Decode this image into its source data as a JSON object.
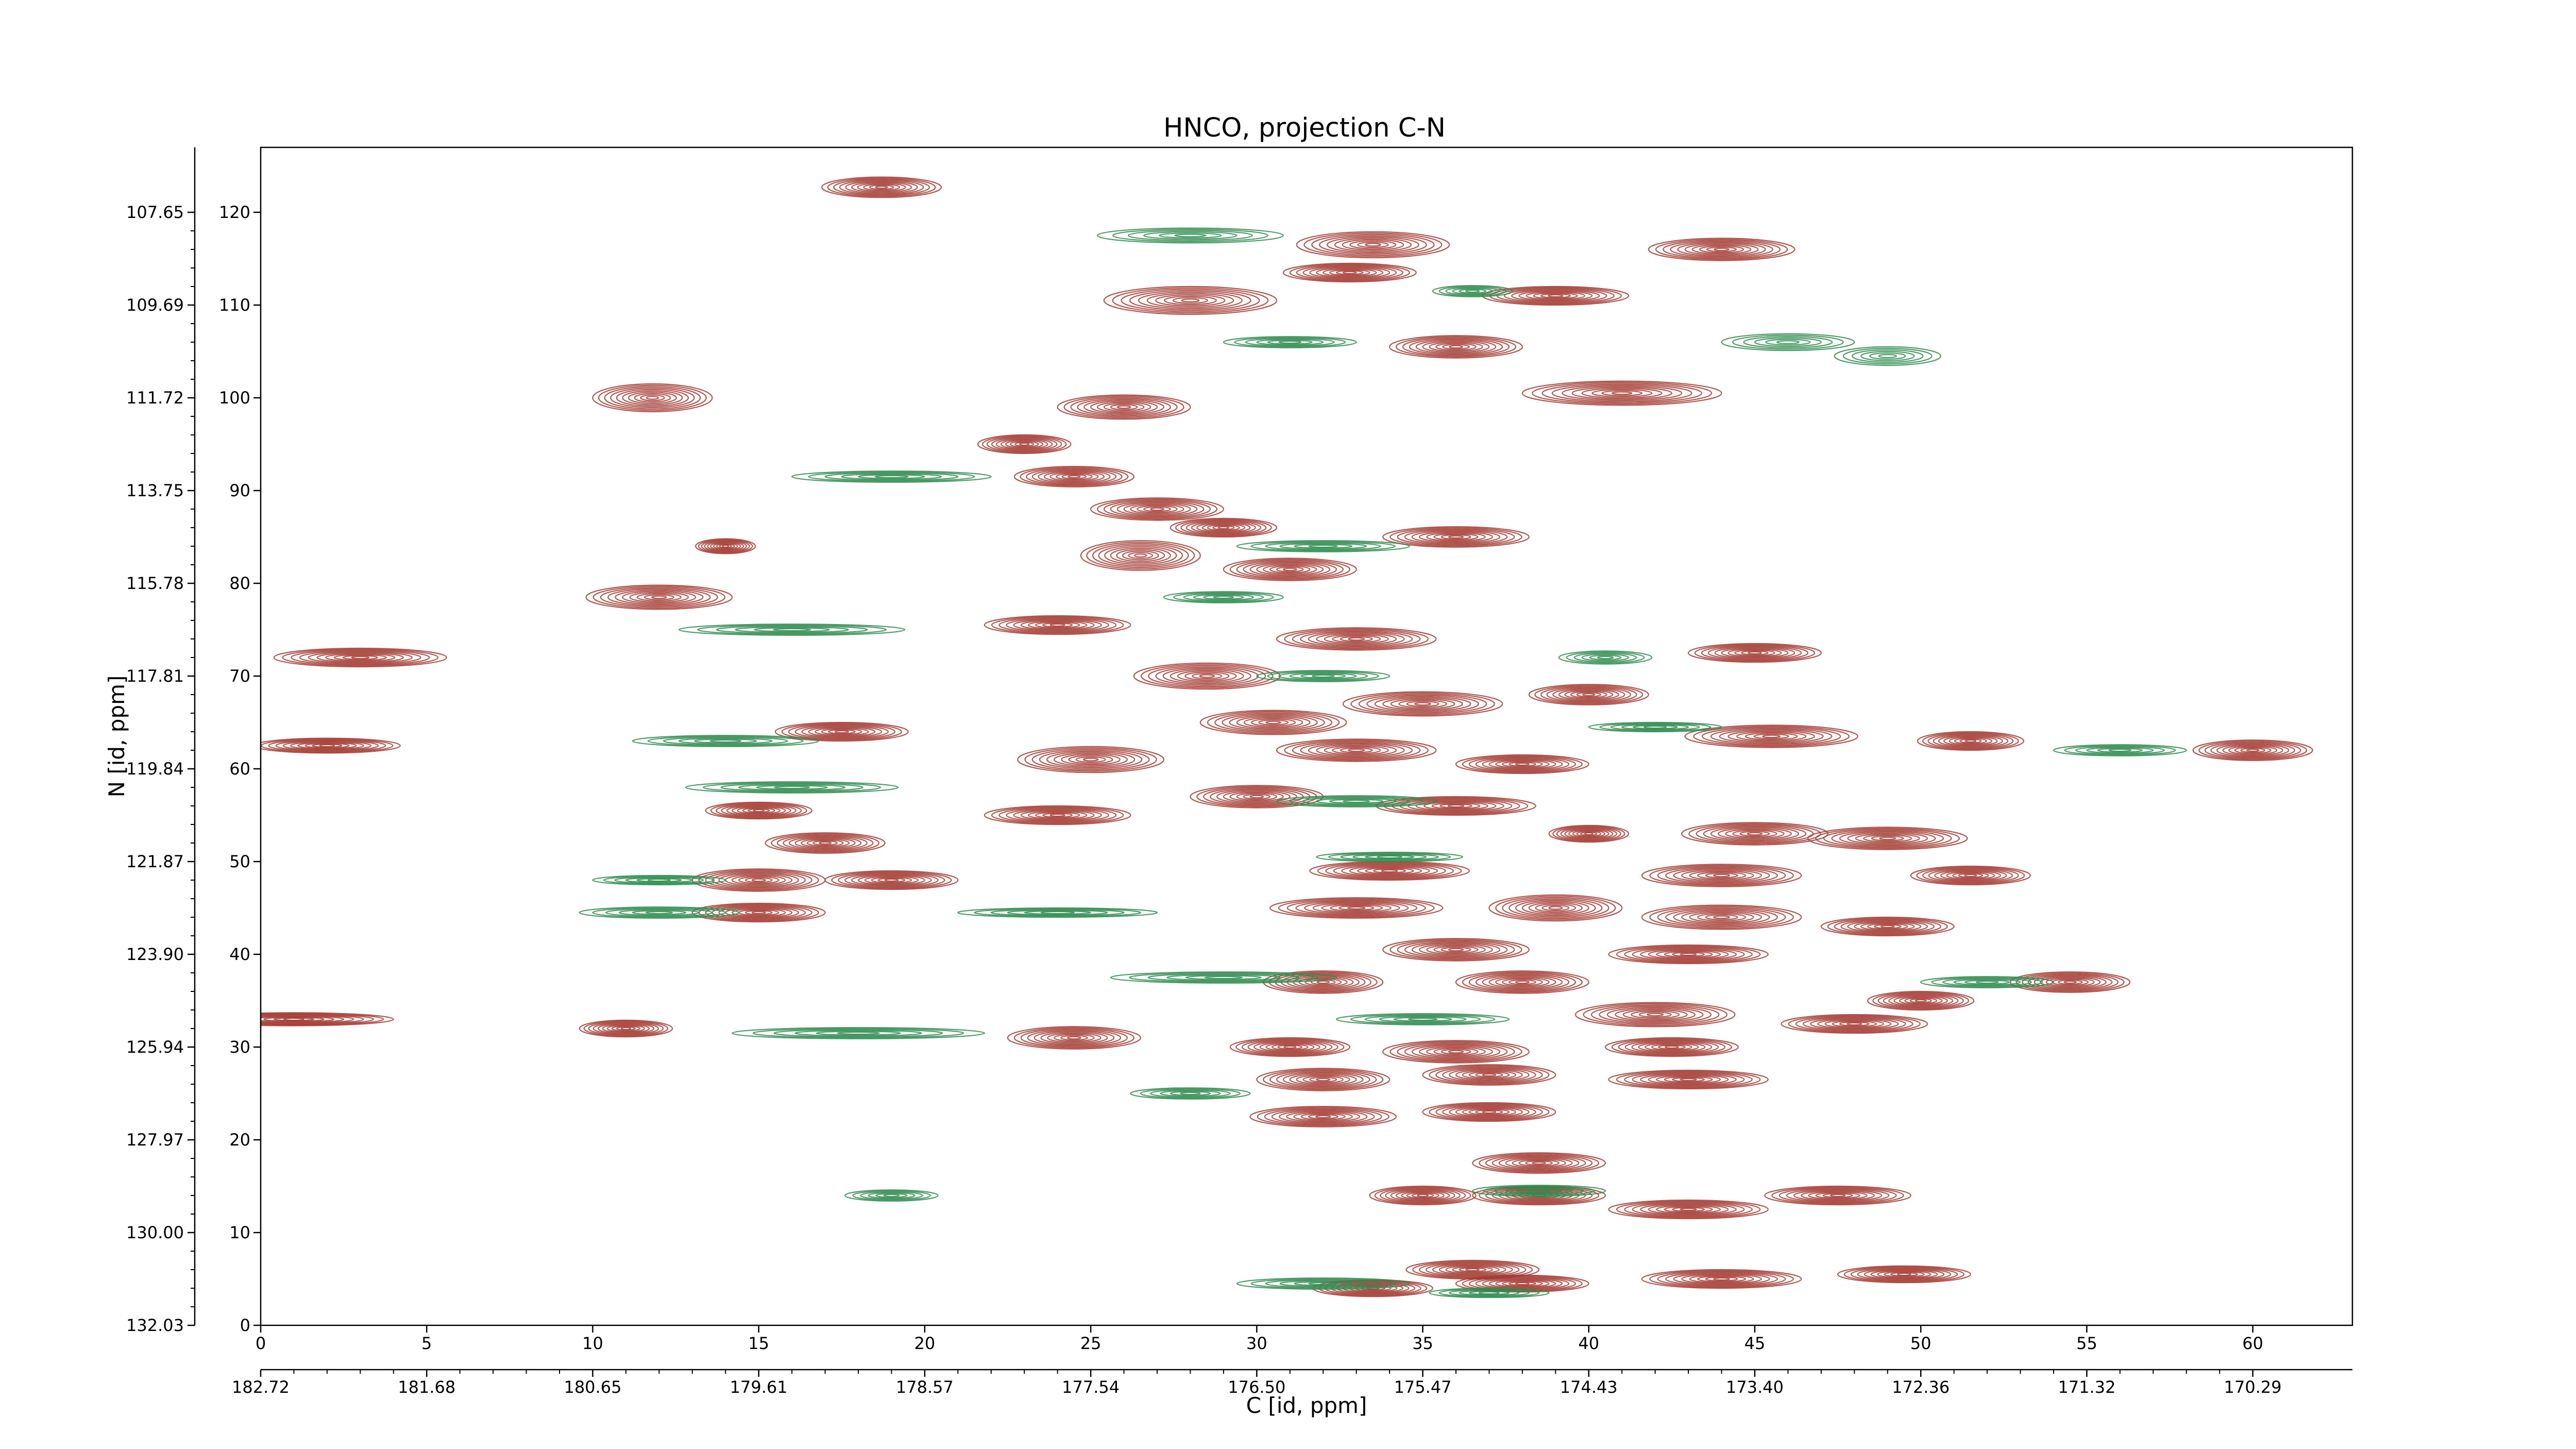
{
  "chart_data": {
    "type": "contour",
    "title": "HNCO, projection C-N",
    "xlabel": "C [id, ppm]",
    "ylabel": "N [id, ppm]",
    "x_index_range": [
      0,
      63
    ],
    "y_index_range": [
      0,
      127
    ],
    "x_index_ticks": [
      "0",
      "5",
      "10",
      "15",
      "20",
      "25",
      "30",
      "35",
      "40",
      "45",
      "50",
      "55",
      "60"
    ],
    "x_ppm_ticks": [
      "182.72",
      "181.68",
      "180.65",
      "179.61",
      "178.57",
      "177.54",
      "176.50",
      "175.47",
      "174.43",
      "173.40",
      "172.36",
      "171.32",
      "170.29"
    ],
    "y_index_ticks": [
      "0",
      "10",
      "20",
      "30",
      "40",
      "50",
      "60",
      "70",
      "80",
      "90",
      "100",
      "110",
      "120"
    ],
    "y_ppm_ticks": [
      "132.03",
      "130.00",
      "127.97",
      "125.94",
      "123.90",
      "121.87",
      "119.84",
      "117.81",
      "115.78",
      "113.75",
      "111.72",
      "109.69",
      "107.65"
    ],
    "series": [
      {
        "color": "#a33a31",
        "levels": 10,
        "peaks": [
          {
            "x": 18.7,
            "y": 122.7,
            "wx": 1.8,
            "wy": 1.1
          },
          {
            "x": 33.5,
            "y": 116.5,
            "wx": 2.3,
            "wy": 1.4
          },
          {
            "x": 32.8,
            "y": 113.5,
            "wx": 2.0,
            "wy": 1.0
          },
          {
            "x": 44.0,
            "y": 116.0,
            "wx": 2.2,
            "wy": 1.2
          },
          {
            "x": 28.0,
            "y": 110.5,
            "wx": 2.6,
            "wy": 1.5
          },
          {
            "x": 39.0,
            "y": 111.0,
            "wx": 2.2,
            "wy": 1.0
          },
          {
            "x": 36.0,
            "y": 105.5,
            "wx": 2.0,
            "wy": 1.2
          },
          {
            "x": 41.0,
            "y": 100.5,
            "wx": 3.0,
            "wy": 1.3
          },
          {
            "x": 11.8,
            "y": 100.0,
            "wx": 1.8,
            "wy": 1.5
          },
          {
            "x": 26.0,
            "y": 99.0,
            "wx": 2.0,
            "wy": 1.3
          },
          {
            "x": 23.0,
            "y": 95.0,
            "wx": 1.4,
            "wy": 1.0
          },
          {
            "x": 24.5,
            "y": 91.5,
            "wx": 1.8,
            "wy": 1.1
          },
          {
            "x": 27.0,
            "y": 88.0,
            "wx": 2.0,
            "wy": 1.2
          },
          {
            "x": 29.0,
            "y": 86.0,
            "wx": 1.6,
            "wy": 1.0
          },
          {
            "x": 26.5,
            "y": 83.0,
            "wx": 1.8,
            "wy": 1.6
          },
          {
            "x": 36.0,
            "y": 85.0,
            "wx": 2.2,
            "wy": 1.1
          },
          {
            "x": 14.0,
            "y": 84.0,
            "wx": 0.9,
            "wy": 0.8
          },
          {
            "x": 12.0,
            "y": 78.5,
            "wx": 2.2,
            "wy": 1.3
          },
          {
            "x": 31.0,
            "y": 81.5,
            "wx": 2.0,
            "wy": 1.2
          },
          {
            "x": 24.0,
            "y": 75.5,
            "wx": 2.2,
            "wy": 1.0
          },
          {
            "x": 33.0,
            "y": 74.0,
            "wx": 2.4,
            "wy": 1.2
          },
          {
            "x": 3.0,
            "y": 72.0,
            "wx": 2.6,
            "wy": 1.0
          },
          {
            "x": 45.0,
            "y": 72.5,
            "wx": 2.0,
            "wy": 1.0
          },
          {
            "x": 28.5,
            "y": 70.0,
            "wx": 2.2,
            "wy": 1.4
          },
          {
            "x": 35.0,
            "y": 67.0,
            "wx": 2.4,
            "wy": 1.3
          },
          {
            "x": 40.0,
            "y": 68.0,
            "wx": 1.8,
            "wy": 1.1
          },
          {
            "x": 17.5,
            "y": 64.0,
            "wx": 2.0,
            "wy": 1.0
          },
          {
            "x": 30.5,
            "y": 65.0,
            "wx": 2.2,
            "wy": 1.3
          },
          {
            "x": 45.5,
            "y": 63.5,
            "wx": 2.6,
            "wy": 1.2
          },
          {
            "x": 51.5,
            "y": 63.0,
            "wx": 1.6,
            "wy": 1.0
          },
          {
            "x": 60.0,
            "y": 62.0,
            "wx": 1.8,
            "wy": 1.1
          },
          {
            "x": 2.0,
            "y": 62.5,
            "wx": 2.2,
            "wy": 0.8
          },
          {
            "x": 25.0,
            "y": 61.0,
            "wx": 2.2,
            "wy": 1.4
          },
          {
            "x": 33.0,
            "y": 62.0,
            "wx": 2.4,
            "wy": 1.2
          },
          {
            "x": 38.0,
            "y": 60.5,
            "wx": 2.0,
            "wy": 1.0
          },
          {
            "x": 15.0,
            "y": 55.5,
            "wx": 1.6,
            "wy": 0.9
          },
          {
            "x": 24.0,
            "y": 55.0,
            "wx": 2.2,
            "wy": 1.0
          },
          {
            "x": 30.0,
            "y": 57.0,
            "wx": 2.0,
            "wy": 1.2
          },
          {
            "x": 36.0,
            "y": 56.0,
            "wx": 2.4,
            "wy": 1.0
          },
          {
            "x": 17.0,
            "y": 52.0,
            "wx": 1.8,
            "wy": 1.1
          },
          {
            "x": 40.0,
            "y": 53.0,
            "wx": 1.2,
            "wy": 0.9
          },
          {
            "x": 45.0,
            "y": 53.0,
            "wx": 2.2,
            "wy": 1.2
          },
          {
            "x": 49.0,
            "y": 52.5,
            "wx": 2.4,
            "wy": 1.2
          },
          {
            "x": 15.0,
            "y": 48.0,
            "wx": 2.0,
            "wy": 1.2
          },
          {
            "x": 19.0,
            "y": 48.0,
            "wx": 2.0,
            "wy": 1.0
          },
          {
            "x": 34.0,
            "y": 49.0,
            "wx": 2.4,
            "wy": 1.0
          },
          {
            "x": 44.0,
            "y": 48.5,
            "wx": 2.4,
            "wy": 1.2
          },
          {
            "x": 51.5,
            "y": 48.5,
            "wx": 1.8,
            "wy": 1.0
          },
          {
            "x": 15.0,
            "y": 44.5,
            "wx": 2.0,
            "wy": 1.0
          },
          {
            "x": 33.0,
            "y": 45.0,
            "wx": 2.6,
            "wy": 1.1
          },
          {
            "x": 39.0,
            "y": 45.0,
            "wx": 2.0,
            "wy": 1.4
          },
          {
            "x": 44.0,
            "y": 44.0,
            "wx": 2.4,
            "wy": 1.3
          },
          {
            "x": 49.0,
            "y": 43.0,
            "wx": 2.0,
            "wy": 1.0
          },
          {
            "x": 36.0,
            "y": 40.5,
            "wx": 2.2,
            "wy": 1.2
          },
          {
            "x": 43.0,
            "y": 40.0,
            "wx": 2.4,
            "wy": 1.0
          },
          {
            "x": 32.0,
            "y": 37.0,
            "wx": 1.8,
            "wy": 1.2
          },
          {
            "x": 38.0,
            "y": 37.0,
            "wx": 2.0,
            "wy": 1.2
          },
          {
            "x": 50.0,
            "y": 35.0,
            "wx": 1.6,
            "wy": 1.0
          },
          {
            "x": 54.5,
            "y": 37.0,
            "wx": 1.8,
            "wy": 1.1
          },
          {
            "x": 1.0,
            "y": 33.0,
            "wx": 3.0,
            "wy": 0.7
          },
          {
            "x": 11.0,
            "y": 32.0,
            "wx": 1.4,
            "wy": 0.9
          },
          {
            "x": 24.5,
            "y": 31.0,
            "wx": 2.0,
            "wy": 1.2
          },
          {
            "x": 42.0,
            "y": 33.5,
            "wx": 2.4,
            "wy": 1.3
          },
          {
            "x": 48.0,
            "y": 32.5,
            "wx": 2.2,
            "wy": 1.0
          },
          {
            "x": 31.0,
            "y": 30.0,
            "wx": 1.8,
            "wy": 1.0
          },
          {
            "x": 36.0,
            "y": 29.5,
            "wx": 2.2,
            "wy": 1.2
          },
          {
            "x": 42.5,
            "y": 30.0,
            "wx": 2.0,
            "wy": 1.0
          },
          {
            "x": 32.0,
            "y": 26.5,
            "wx": 2.0,
            "wy": 1.2
          },
          {
            "x": 37.0,
            "y": 27.0,
            "wx": 2.0,
            "wy": 1.1
          },
          {
            "x": 43.0,
            "y": 26.5,
            "wx": 2.4,
            "wy": 1.0
          },
          {
            "x": 32.0,
            "y": 22.5,
            "wx": 2.2,
            "wy": 1.1
          },
          {
            "x": 37.0,
            "y": 23.0,
            "wx": 2.0,
            "wy": 1.0
          },
          {
            "x": 38.5,
            "y": 17.5,
            "wx": 2.0,
            "wy": 1.1
          },
          {
            "x": 35.0,
            "y": 14.0,
            "wx": 1.6,
            "wy": 1.0
          },
          {
            "x": 38.5,
            "y": 14.0,
            "wx": 2.0,
            "wy": 1.0
          },
          {
            "x": 43.0,
            "y": 12.5,
            "wx": 2.4,
            "wy": 1.0
          },
          {
            "x": 47.5,
            "y": 14.0,
            "wx": 2.2,
            "wy": 1.0
          },
          {
            "x": 33.5,
            "y": 4.0,
            "wx": 1.8,
            "wy": 0.9
          },
          {
            "x": 36.5,
            "y": 6.0,
            "wx": 2.0,
            "wy": 1.0
          },
          {
            "x": 38.0,
            "y": 4.5,
            "wx": 2.0,
            "wy": 0.9
          },
          {
            "x": 44.0,
            "y": 5.0,
            "wx": 2.4,
            "wy": 1.0
          },
          {
            "x": 49.5,
            "y": 5.5,
            "wx": 2.0,
            "wy": 0.9
          }
        ]
      },
      {
        "color": "#2e8b4f",
        "levels": 6,
        "peaks": [
          {
            "x": 28.0,
            "y": 117.5,
            "wx": 2.8,
            "wy": 0.8
          },
          {
            "x": 46.0,
            "y": 106.0,
            "wx": 2.0,
            "wy": 0.9
          },
          {
            "x": 49.0,
            "y": 104.5,
            "wx": 1.6,
            "wy": 1.0
          },
          {
            "x": 31.0,
            "y": 106.0,
            "wx": 2.0,
            "wy": 0.6
          },
          {
            "x": 36.5,
            "y": 111.5,
            "wx": 1.2,
            "wy": 0.6
          },
          {
            "x": 19.0,
            "y": 91.5,
            "wx": 3.0,
            "wy": 0.6
          },
          {
            "x": 32.0,
            "y": 84.0,
            "wx": 2.6,
            "wy": 0.6
          },
          {
            "x": 16.0,
            "y": 75.0,
            "wx": 3.4,
            "wy": 0.6
          },
          {
            "x": 29.0,
            "y": 78.5,
            "wx": 1.8,
            "wy": 0.6
          },
          {
            "x": 32.0,
            "y": 70.0,
            "wx": 2.0,
            "wy": 0.6
          },
          {
            "x": 40.5,
            "y": 72.0,
            "wx": 1.4,
            "wy": 0.7
          },
          {
            "x": 14.0,
            "y": 63.0,
            "wx": 2.8,
            "wy": 0.6
          },
          {
            "x": 42.0,
            "y": 64.5,
            "wx": 2.0,
            "wy": 0.5
          },
          {
            "x": 56.0,
            "y": 62.0,
            "wx": 2.0,
            "wy": 0.6
          },
          {
            "x": 16.0,
            "y": 58.0,
            "wx": 3.2,
            "wy": 0.6
          },
          {
            "x": 33.0,
            "y": 56.5,
            "wx": 2.4,
            "wy": 0.6
          },
          {
            "x": 34.0,
            "y": 50.5,
            "wx": 2.2,
            "wy": 0.5
          },
          {
            "x": 12.0,
            "y": 48.0,
            "wx": 2.0,
            "wy": 0.5
          },
          {
            "x": 12.0,
            "y": 44.5,
            "wx": 2.4,
            "wy": 0.6
          },
          {
            "x": 24.0,
            "y": 44.5,
            "wx": 3.0,
            "wy": 0.5
          },
          {
            "x": 29.0,
            "y": 37.5,
            "wx": 3.4,
            "wy": 0.6
          },
          {
            "x": 52.0,
            "y": 37.0,
            "wx": 2.0,
            "wy": 0.6
          },
          {
            "x": 18.0,
            "y": 31.5,
            "wx": 3.8,
            "wy": 0.6
          },
          {
            "x": 35.0,
            "y": 33.0,
            "wx": 2.6,
            "wy": 0.6
          },
          {
            "x": 28.0,
            "y": 25.0,
            "wx": 1.8,
            "wy": 0.6
          },
          {
            "x": 38.5,
            "y": 14.5,
            "wx": 2.0,
            "wy": 0.6
          },
          {
            "x": 19.0,
            "y": 14.0,
            "wx": 1.4,
            "wy": 0.6
          },
          {
            "x": 32.0,
            "y": 4.5,
            "wx": 2.6,
            "wy": 0.6
          },
          {
            "x": 37.0,
            "y": 3.5,
            "wx": 1.8,
            "wy": 0.5
          }
        ]
      }
    ]
  }
}
